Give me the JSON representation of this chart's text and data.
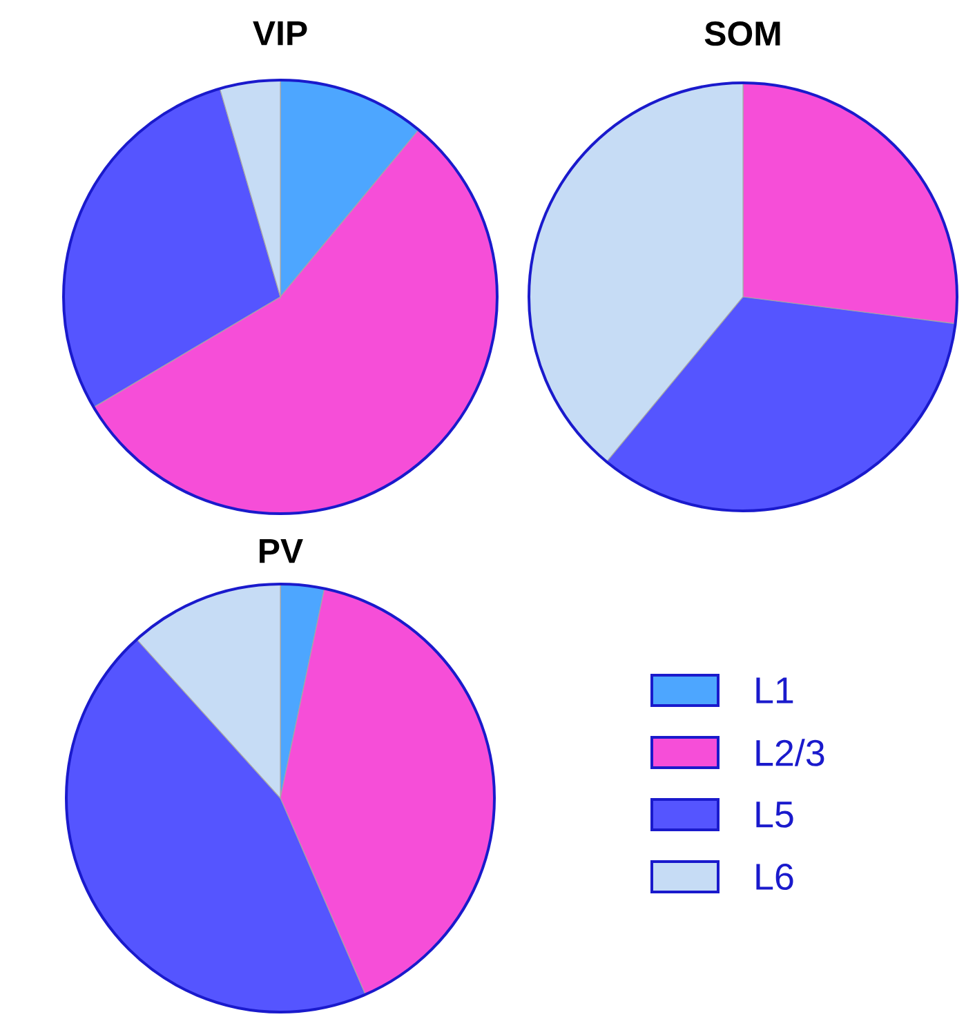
{
  "chart_data": [
    {
      "type": "pie",
      "title": "VIP",
      "categories": [
        null,
        null,
        null,
        null
      ],
      "values": [
        11,
        55.5,
        29,
        4.5
      ],
      "colors": [
        "#4da6ff",
        "#f64ed8",
        "#5555ff",
        "#c6dcf5"
      ]
    },
    {
      "type": "pie",
      "title": "SOM",
      "categories": [
        null,
        null,
        null,
        null
      ],
      "values": [
        0,
        27,
        34,
        39
      ],
      "colors": [
        "#4da6ff",
        "#f64ed8",
        "#5555ff",
        "#c6dcf5"
      ]
    },
    {
      "type": "pie",
      "title": "PV",
      "categories": [
        "L1",
        "L2/3",
        "L5",
        "L6"
      ],
      "values": [
        3.3,
        40.2,
        44.8,
        11.7
      ],
      "colors": [
        "#4da6ff",
        "#f64ed8",
        "#5555ff",
        "#c6dcf5"
      ],
      "legend": "right"
    }
  ]
}
